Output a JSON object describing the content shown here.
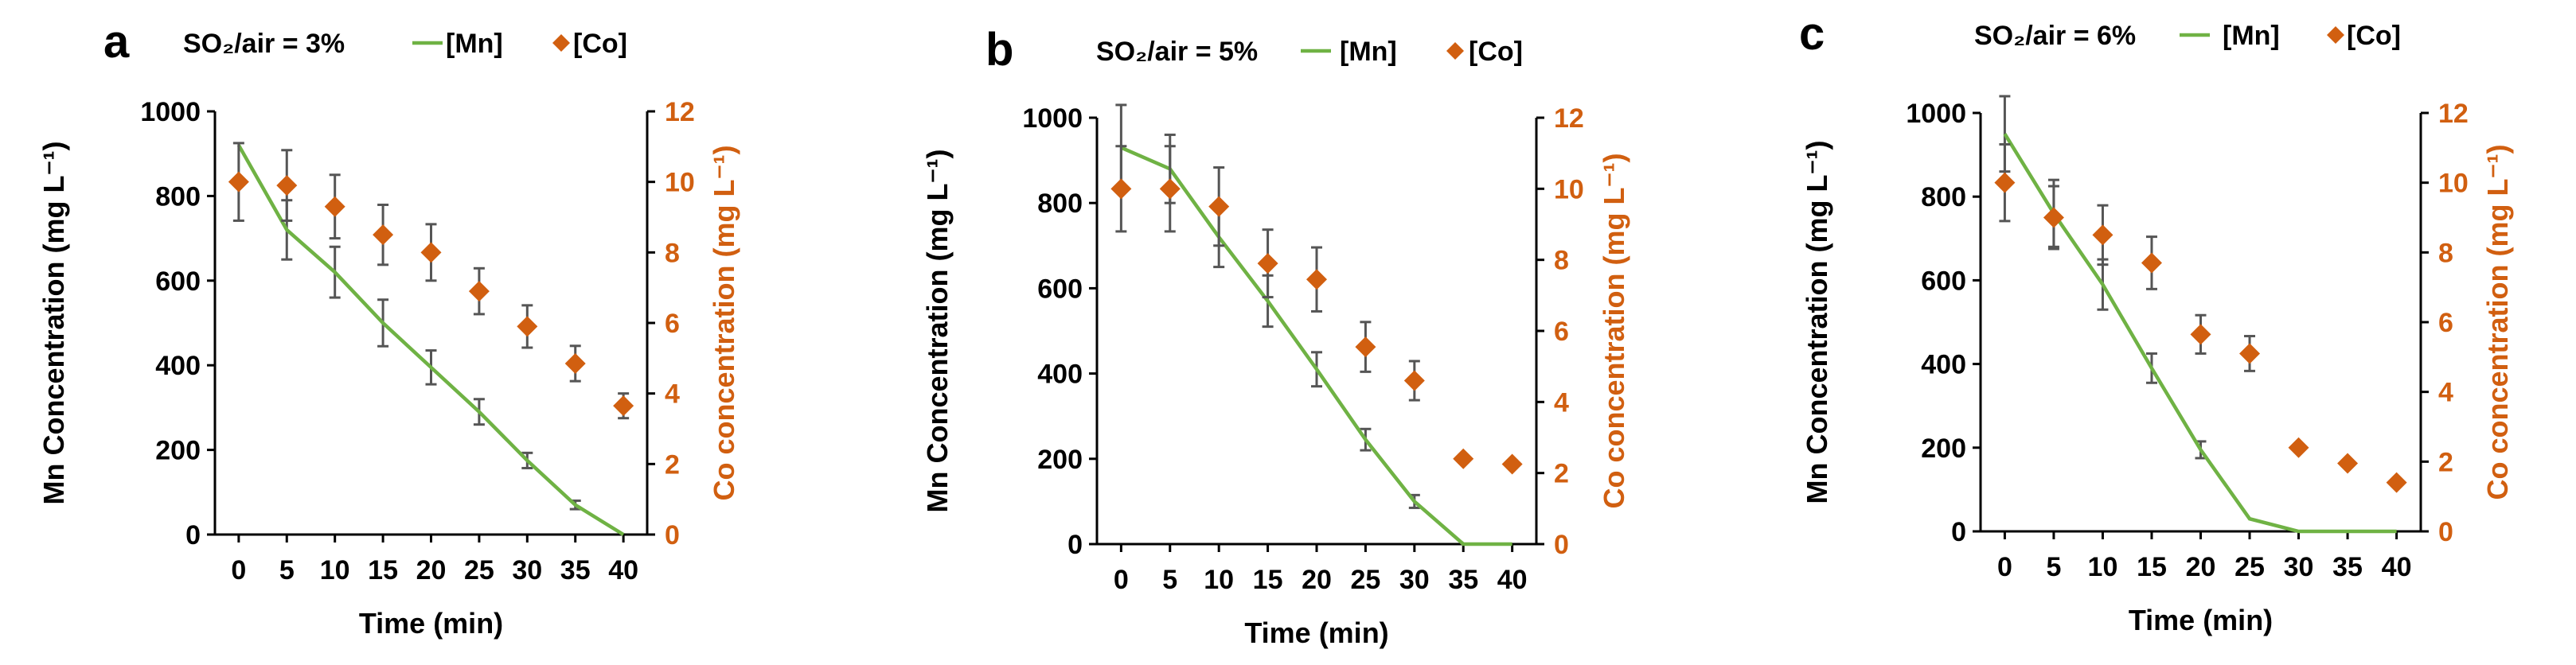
{
  "colors": {
    "mn": "#6fb244",
    "co": "#d15f10",
    "error": "#555555"
  },
  "chart_data": [
    {
      "type": "line+scatter",
      "panel_label": "a",
      "condition_label": "SO₂/air = 3%",
      "legend": [
        "[Mn]",
        "[Co]"
      ],
      "xlabel": "Time (min)",
      "ylabel_left": "Mn Concentration (mg L⁻¹)",
      "ylabel_right": "Co concentration (mg L⁻¹)",
      "x": [
        0,
        5,
        10,
        15,
        20,
        25,
        30,
        35,
        40
      ],
      "xticks": [
        "0",
        "5",
        "10",
        "15",
        "20",
        "25",
        "30",
        "35",
        "40"
      ],
      "ylim_left": [
        0,
        1000
      ],
      "yticks_left": [
        "0",
        "200",
        "400",
        "600",
        "800",
        "1000"
      ],
      "ylim_right": [
        0,
        12
      ],
      "yticks_right": [
        "0",
        "2",
        "4",
        "6",
        "8",
        "10",
        "12"
      ],
      "mn": [
        920,
        720,
        620,
        500,
        395,
        290,
        175,
        70,
        0
      ],
      "mn_err": [
        0,
        70,
        60,
        55,
        40,
        30,
        18,
        10,
        0
      ],
      "co": [
        10.0,
        9.9,
        9.3,
        8.5,
        8.0,
        6.9,
        5.9,
        4.85,
        3.65
      ],
      "co_err": [
        1.1,
        1.0,
        0.9,
        0.85,
        0.8,
        0.65,
        0.6,
        0.5,
        0.35
      ]
    },
    {
      "type": "line+scatter",
      "panel_label": "b",
      "condition_label": "SO₂/air = 5%",
      "legend": [
        "[Mn]",
        "[Co]"
      ],
      "xlabel": "Time (min)",
      "ylabel_left": "Mn Concentration (mg L⁻¹)",
      "ylabel_right": "Co concentration (mg L⁻¹)",
      "x": [
        0,
        5,
        10,
        15,
        20,
        25,
        30,
        35,
        40
      ],
      "xticks": [
        "0",
        "5",
        "10",
        "15",
        "20",
        "25",
        "30",
        "35",
        "40"
      ],
      "ylim_left": [
        0,
        1000
      ],
      "yticks_left": [
        "0",
        "200",
        "400",
        "600",
        "800",
        "1000"
      ],
      "ylim_right": [
        0,
        12
      ],
      "yticks_right": [
        "0",
        "2",
        "4",
        "6",
        "8",
        "10",
        "12"
      ],
      "mn": [
        930,
        880,
        720,
        570,
        410,
        245,
        100,
        0,
        0
      ],
      "mn_err": [
        100,
        80,
        70,
        60,
        40,
        25,
        15,
        0,
        0
      ],
      "co": [
        10.0,
        10.0,
        9.5,
        7.9,
        7.45,
        5.55,
        4.6,
        2.4,
        2.25
      ],
      "co_err": [
        1.2,
        1.2,
        1.1,
        0.95,
        0.9,
        0.7,
        0.55,
        0.1,
        0.1
      ]
    },
    {
      "type": "line+scatter",
      "panel_label": "c",
      "condition_label": "SO₂/air = 6%",
      "legend": [
        "[Mn]",
        "[Co]"
      ],
      "xlabel": "Time (min)",
      "ylabel_left": "Mn Concentration (mg L⁻¹)",
      "ylabel_right": "Co concentration (mg L⁻¹)",
      "x": [
        0,
        5,
        10,
        15,
        20,
        25,
        30,
        35,
        40
      ],
      "xticks": [
        "0",
        "5",
        "10",
        "15",
        "20",
        "25",
        "30",
        "35",
        "40"
      ],
      "ylim_left": [
        0,
        1000
      ],
      "yticks_left": [
        "0",
        "200",
        "400",
        "600",
        "800",
        "1000"
      ],
      "ylim_right": [
        0,
        12
      ],
      "yticks_right": [
        "0",
        "2",
        "4",
        "6",
        "8",
        "10",
        "12"
      ],
      "mn": [
        950,
        760,
        590,
        390,
        195,
        30,
        0,
        0,
        0
      ],
      "mn_err": [
        90,
        80,
        60,
        35,
        20,
        0,
        0,
        0,
        0
      ],
      "co": [
        10.0,
        9.0,
        8.5,
        7.7,
        5.65,
        5.1,
        2.4,
        1.95,
        1.4
      ],
      "co_err": [
        1.1,
        0.9,
        0.85,
        0.75,
        0.55,
        0.5,
        0.1,
        0.1,
        0.1
      ]
    }
  ]
}
